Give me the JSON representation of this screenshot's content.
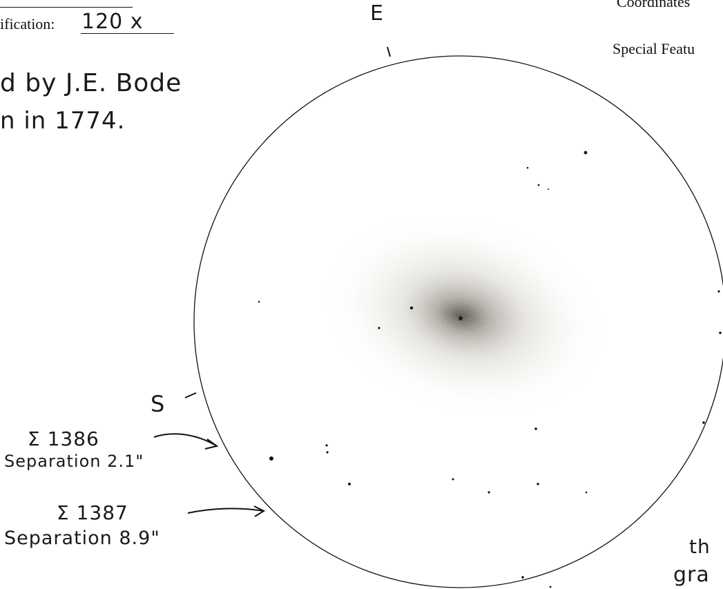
{
  "header": {
    "magnification_label": "ification:",
    "magnification_value": "120 x",
    "coordinates_label": "Coordinates",
    "special_features_label": "Special Featu"
  },
  "notes": {
    "discovery_line1": "d by J.E. Bode",
    "discovery_line2": "n in 1774."
  },
  "compass": {
    "east": "E",
    "south": "S"
  },
  "annotations": [
    {
      "id": "star1",
      "name": "Σ 1386",
      "separation": "Separation 2.1\""
    },
    {
      "id": "star2",
      "name": "Σ 1387",
      "separation": "Separation 8.9\""
    }
  ],
  "corner_note": {
    "line1": "th",
    "line2": "gra"
  },
  "colors": {
    "ink": "#111111",
    "nebula_core": "#2a2620",
    "nebula_halo": "#d8d3c4",
    "paper": "#ffffff"
  }
}
